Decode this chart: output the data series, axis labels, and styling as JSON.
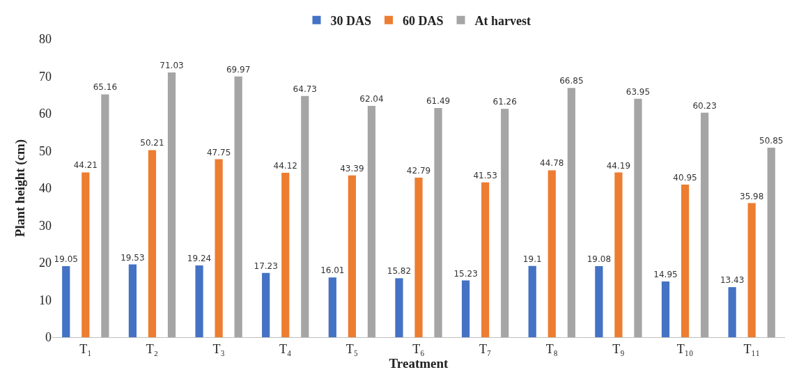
{
  "chart_data": {
    "type": "bar",
    "xlabel": "Treatment",
    "ylabel": "Plant height (cm)",
    "categories": [
      "T₁",
      "T₂",
      "T₃",
      "T₄",
      "T₅",
      "T₆",
      "T₇",
      "T₈",
      "T₉",
      "T₁₀",
      "T₁₁"
    ],
    "series": [
      {
        "name": "30 DAS",
        "color": "#4472c4",
        "values": [
          19.05,
          19.53,
          19.24,
          17.23,
          16.01,
          15.82,
          15.23,
          19.1,
          19.08,
          14.95,
          13.43
        ]
      },
      {
        "name": "60 DAS",
        "color": "#ed7d31",
        "values": [
          44.21,
          50.21,
          47.75,
          44.12,
          43.39,
          42.79,
          41.53,
          44.78,
          44.19,
          40.95,
          35.98
        ]
      },
      {
        "name": "At harvest",
        "color": "#a5a5a5",
        "values": [
          65.16,
          71.03,
          69.97,
          64.73,
          62.04,
          61.49,
          61.26,
          66.85,
          63.95,
          60.23,
          50.85
        ]
      }
    ],
    "ylim": [
      0,
      80
    ],
    "yticks": [
      0,
      10,
      20,
      30,
      40,
      50,
      60,
      70,
      80
    ],
    "data_labels": true,
    "legend": "top"
  }
}
